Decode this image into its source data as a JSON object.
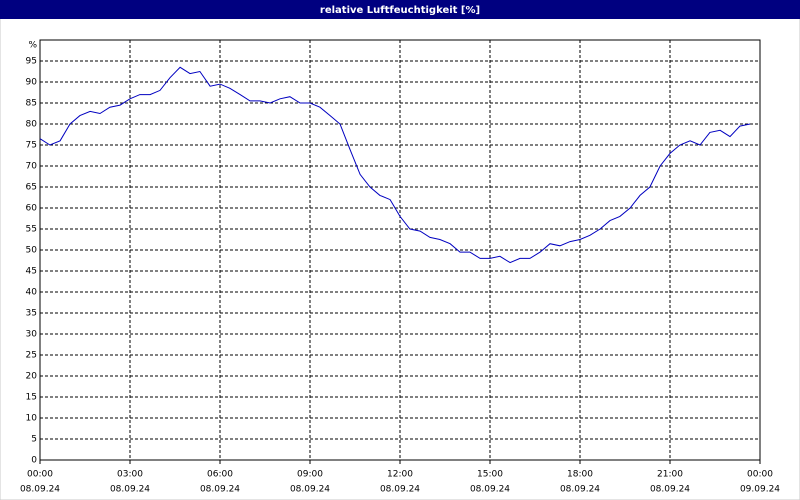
{
  "chart_data": {
    "type": "line",
    "title": "relative Luftfeuchtigkeit [%]",
    "y_label": "%",
    "x": [
      0,
      0.33,
      0.67,
      1,
      1.33,
      1.67,
      2,
      2.33,
      2.67,
      3,
      3.33,
      3.67,
      4,
      4.33,
      4.67,
      5,
      5.33,
      5.67,
      6,
      6.33,
      6.67,
      7,
      7.33,
      7.67,
      8,
      8.33,
      8.67,
      9,
      9.33,
      9.67,
      10,
      10.33,
      10.67,
      11,
      11.33,
      11.67,
      12,
      12.33,
      12.67,
      13,
      13.33,
      13.67,
      14,
      14.33,
      14.67,
      15,
      15.33,
      15.67,
      16,
      16.33,
      16.67,
      17,
      17.33,
      17.67,
      18,
      18.33,
      18.67,
      19,
      19.33,
      19.67,
      20,
      20.33,
      20.67,
      21,
      21.33,
      21.67,
      22,
      22.33,
      22.67,
      23,
      23.33,
      23.67
    ],
    "series": [
      {
        "name": "relative Luftfeuchtigkeit",
        "color": "#0000c0",
        "values": [
          76.5,
          75,
          76,
          80,
          82,
          83,
          82.5,
          84,
          84.5,
          86,
          87,
          87,
          88,
          91,
          93.5,
          92,
          92.5,
          89,
          89.5,
          88.5,
          87,
          85.5,
          85.5,
          85,
          86,
          86.5,
          85,
          85,
          84,
          82,
          80,
          74,
          68,
          65,
          63,
          62,
          58,
          55,
          54.5,
          53,
          52.5,
          51.5,
          49.5,
          49.5,
          48,
          48,
          48.5,
          47,
          48,
          48,
          49.5,
          51.5,
          51,
          52,
          52.5,
          53.5,
          55,
          57,
          58,
          60,
          63,
          65,
          70,
          73,
          75,
          76,
          75,
          78,
          78.5,
          77,
          79.5,
          80
        ]
      }
    ],
    "xlim": [
      0,
      24
    ],
    "ylim": [
      0,
      100
    ],
    "xticks": [
      {
        "value": 0,
        "label": "00:00"
      },
      {
        "value": 3,
        "label": "03:00"
      },
      {
        "value": 6,
        "label": "06:00"
      },
      {
        "value": 9,
        "label": "09:00"
      },
      {
        "value": 12,
        "label": "12:00"
      },
      {
        "value": 15,
        "label": "15:00"
      },
      {
        "value": 18,
        "label": "18:00"
      },
      {
        "value": 21,
        "label": "21:00"
      },
      {
        "value": 24,
        "label": "00:00"
      }
    ],
    "xtick_dates": [
      "08.09.24",
      "08.09.24",
      "08.09.24",
      "08.09.24",
      "08.09.24",
      "08.09.24",
      "08.09.24",
      "08.09.24",
      "09.09.24"
    ],
    "yticks": [
      0,
      5,
      10,
      15,
      20,
      25,
      30,
      35,
      40,
      45,
      50,
      55,
      60,
      65,
      70,
      75,
      80,
      85,
      90,
      95
    ],
    "grid": true
  }
}
